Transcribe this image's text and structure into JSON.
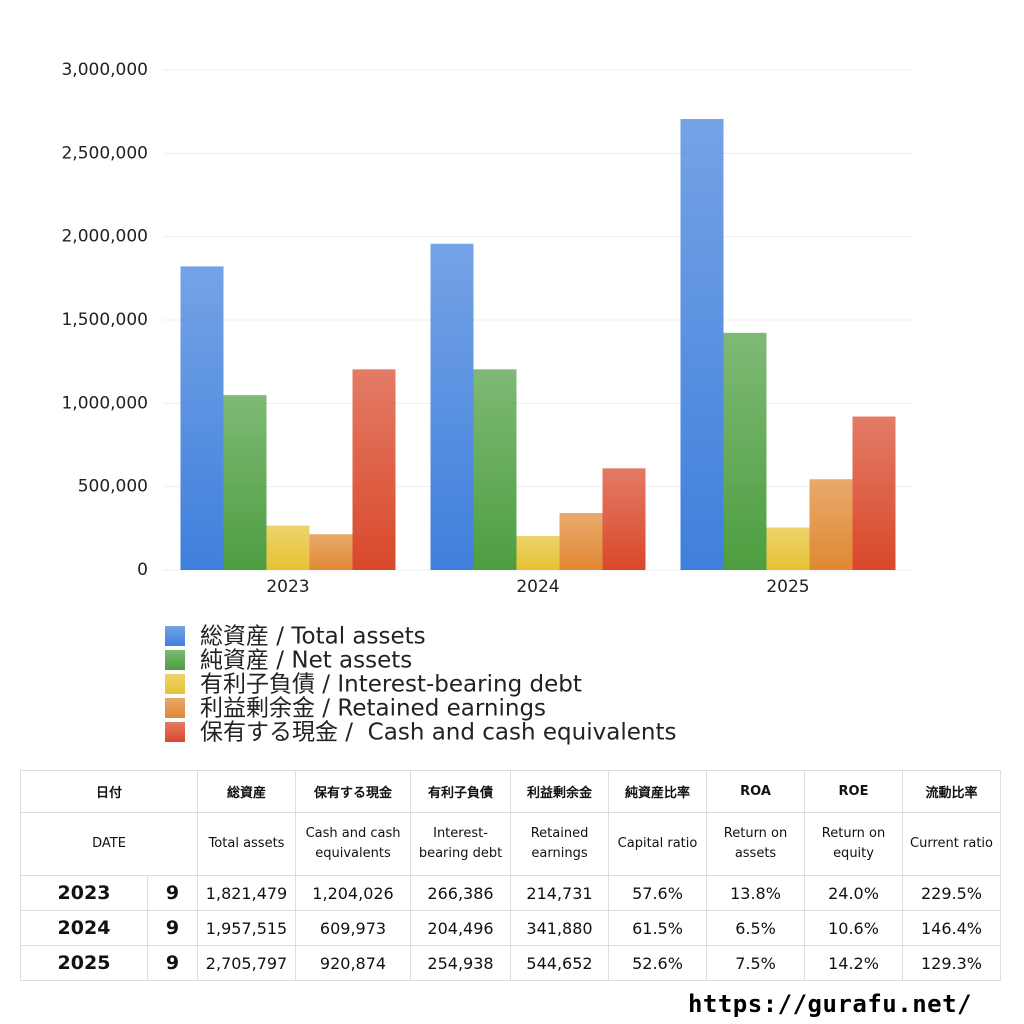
{
  "chart_data": {
    "type": "bar",
    "categories": [
      "2023",
      "2024",
      "2025"
    ],
    "series": [
      {
        "name": "総資産 / Total assets",
        "color": "#3f7fdc",
        "values": [
          1821479,
          1957515,
          2705797
        ]
      },
      {
        "name": "純資産 / Net assets",
        "color": "#4d9e40",
        "values": [
          1049000,
          1204000,
          1423000
        ]
      },
      {
        "name": "有利子負債 / Interest-bearing debt",
        "color": "#e6c233",
        "values": [
          266386,
          204496,
          254938
        ]
      },
      {
        "name": "利益剰余金 / Retained earnings",
        "color": "#e08833",
        "values": [
          214731,
          341880,
          544652
        ]
      },
      {
        "name": "保有する現金 /  Cash and cash equivalents",
        "color": "#d9482a",
        "values": [
          1204026,
          609973,
          920874
        ]
      }
    ],
    "ylim": [
      0,
      3000000
    ],
    "yticks": [
      0,
      {
        "value": 500000,
        "label": "500,000"
      },
      {
        "value": 1000000,
        "label": "1,000,000"
      },
      {
        "value": 1500000,
        "label": "1,500,000"
      },
      {
        "value": 2000000,
        "label": "2,000,000"
      },
      {
        "value": 2500000,
        "label": "2,500,000"
      },
      {
        "value": 3000000,
        "label": "3,000,000"
      }
    ],
    "grid": true
  },
  "table": {
    "columns": [
      {
        "ja": "日付",
        "en": "DATE"
      },
      {
        "ja": "総資産",
        "en": "Total assets"
      },
      {
        "ja": "保有する現金",
        "en": "Cash and cash equivalents"
      },
      {
        "ja": "有利子負債",
        "en": "Interest-bearing debt"
      },
      {
        "ja": "利益剰余金",
        "en": "Retained earnings"
      },
      {
        "ja": "純資産比率",
        "en": "Capital ratio"
      },
      {
        "ja": "ROA",
        "en": "Return on assets"
      },
      {
        "ja": "ROE",
        "en": "Return on equity"
      },
      {
        "ja": "流動比率",
        "en": "Current ratio"
      }
    ],
    "rows": [
      [
        "2023",
        "9",
        "1,821,479",
        "1,204,026",
        "266,386",
        "214,731",
        "57.6%",
        "13.8%",
        "24.0%",
        "229.5%"
      ],
      [
        "2024",
        "9",
        "1,957,515",
        "609,973",
        "204,496",
        "341,880",
        "61.5%",
        "6.5%",
        "10.6%",
        "146.4%"
      ],
      [
        "2025",
        "9",
        "2,705,797",
        "920,874",
        "254,938",
        "544,652",
        "52.6%",
        "7.5%",
        "14.2%",
        "129.3%"
      ]
    ]
  },
  "footer": "https://gurafu.net/"
}
